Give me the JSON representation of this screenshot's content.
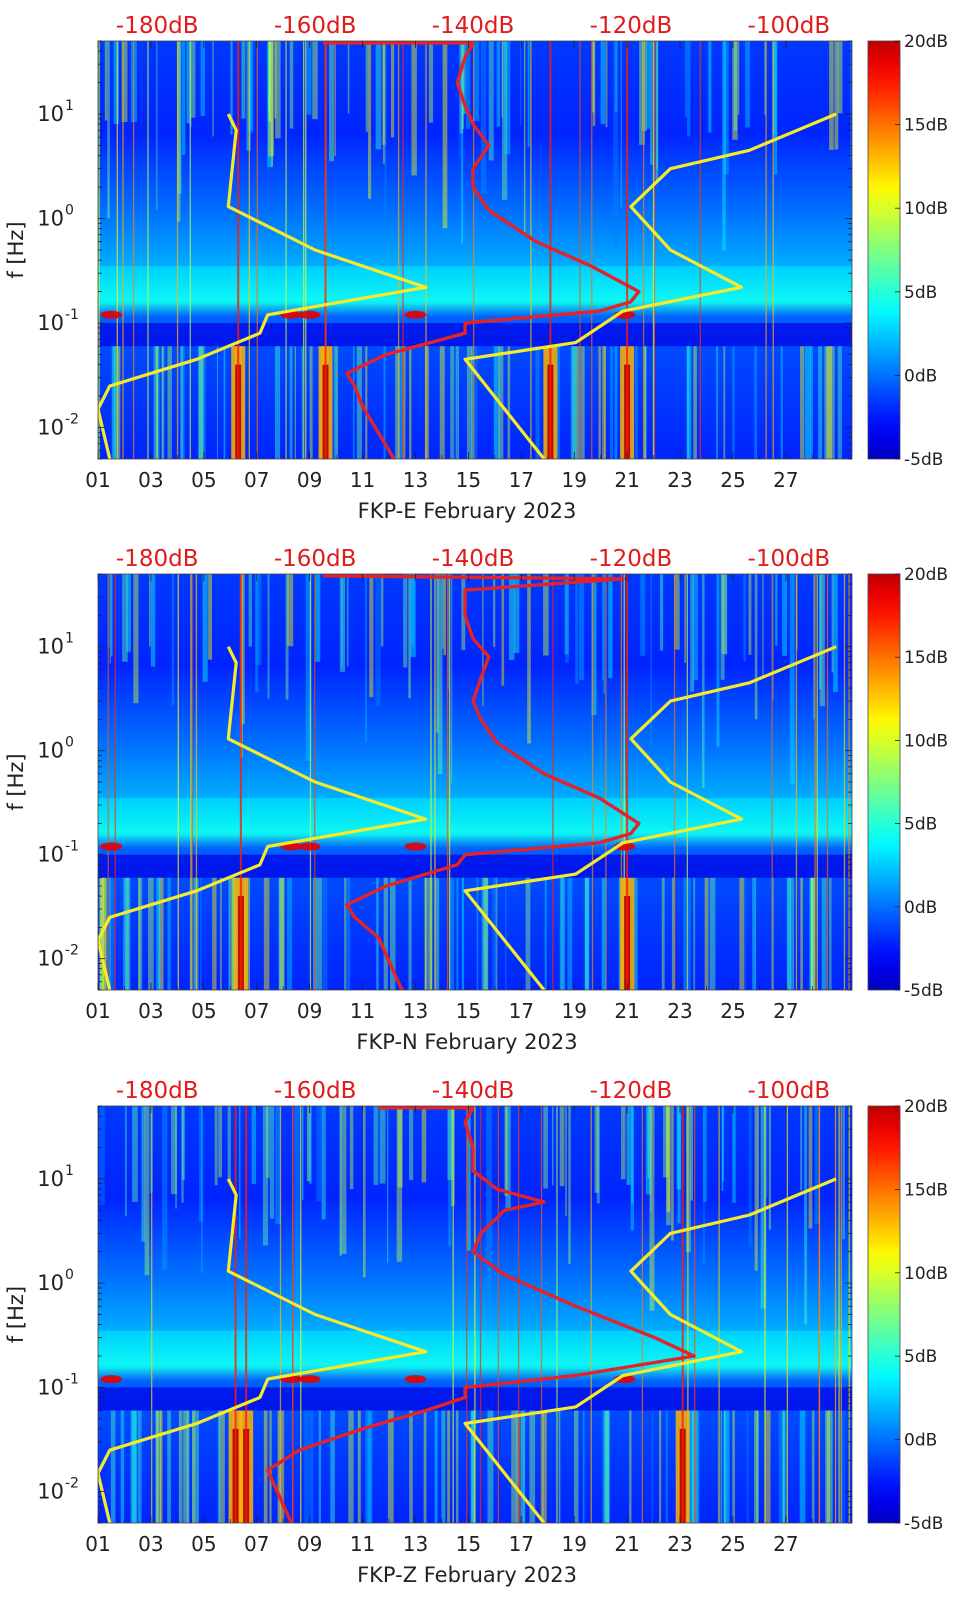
{
  "figure": {
    "colors": {
      "noise_model": "#f5ea2b",
      "median_curve": "#e3232a",
      "top_axis_text": "#e01b1b",
      "axis_text": "#222222"
    }
  },
  "chart_data": [
    {
      "type": "heatmap",
      "station": "FKP-E",
      "xlabel": "FKP-E February 2023",
      "ylabel": "f [Hz]",
      "x_ticks": [
        "01",
        "03",
        "05",
        "07",
        "09",
        "11",
        "13",
        "15",
        "17",
        "19",
        "21",
        "23",
        "25",
        "27"
      ],
      "x_range": [
        1,
        29.5
      ],
      "y_scale": "log",
      "y_range_hz": [
        0.005,
        50
      ],
      "y_ticks": [
        {
          "label": "10",
          "exp": "-2",
          "value": 0.01
        },
        {
          "label": "10",
          "exp": "-1",
          "value": 0.1
        },
        {
          "label": "10",
          "exp": "0",
          "value": 1
        },
        {
          "label": "10",
          "exp": "1",
          "value": 10
        }
      ],
      "top_axis_db_ticks": [
        "-180dB",
        "-160dB",
        "-140dB",
        "-120dB",
        "-100dB"
      ],
      "top_axis_db_values": [
        -180,
        -160,
        -140,
        -120,
        -100
      ],
      "top_axis_range_db": [
        -187.5,
        -92
      ],
      "colorbar": {
        "range_db": [
          -5,
          20
        ],
        "ticks": [
          "20dB",
          "15dB",
          "10dB",
          "5dB",
          "0dB",
          "-5dB"
        ],
        "tick_values": [
          20,
          15,
          10,
          5,
          0,
          -5
        ],
        "colormap": "jet"
      },
      "noise_model_db": [
        {
          "series": "low",
          "points": [
            [
              0.005,
              -186
            ],
            [
              0.015,
              -187.5
            ],
            [
              0.025,
              -186
            ],
            [
              0.045,
              -175
            ],
            [
              0.08,
              -167
            ],
            [
              0.12,
              -166
            ],
            [
              0.22,
              -146
            ],
            [
              0.5,
              -160
            ],
            [
              1.3,
              -171
            ],
            [
              7,
              -170
            ],
            [
              10,
              -171
            ]
          ]
        },
        {
          "series": "high",
          "points": [
            [
              0.005,
              -131
            ],
            [
              0.045,
              -141
            ],
            [
              0.065,
              -127
            ],
            [
              0.13,
              -121
            ],
            [
              0.22,
              -106
            ],
            [
              0.5,
              -115
            ],
            [
              1.3,
              -120
            ],
            [
              3,
              -115
            ],
            [
              4.5,
              -105
            ],
            [
              10,
              -94
            ]
          ]
        }
      ],
      "median_curve_db": [
        [
          0.005,
          -150
        ],
        [
          0.016,
          -154
        ],
        [
          0.025,
          -155
        ],
        [
          0.033,
          -156
        ],
        [
          0.05,
          -151
        ],
        [
          0.08,
          -141
        ],
        [
          0.1,
          -141
        ],
        [
          0.13,
          -124
        ],
        [
          0.16,
          -120
        ],
        [
          0.2,
          -119
        ],
        [
          0.35,
          -125
        ],
        [
          0.6,
          -132
        ],
        [
          1.2,
          -138
        ],
        [
          2,
          -140
        ],
        [
          3,
          -140
        ],
        [
          5,
          -138
        ],
        [
          8,
          -140
        ],
        [
          12,
          -141
        ],
        [
          20,
          -142
        ],
        [
          35,
          -141
        ],
        [
          48,
          -140
        ],
        [
          48,
          -159
        ]
      ],
      "bright_days": [
        6.3,
        9.6,
        18.1,
        21.0
      ]
    },
    {
      "type": "heatmap",
      "station": "FKP-N",
      "xlabel": "FKP-N February 2023",
      "ylabel": "f [Hz]",
      "x_ticks": [
        "01",
        "03",
        "05",
        "07",
        "09",
        "11",
        "13",
        "15",
        "17",
        "19",
        "21",
        "23",
        "25",
        "27"
      ],
      "x_range": [
        1,
        29.5
      ],
      "y_scale": "log",
      "y_range_hz": [
        0.005,
        50
      ],
      "y_ticks": [
        {
          "label": "10",
          "exp": "-2",
          "value": 0.01
        },
        {
          "label": "10",
          "exp": "-1",
          "value": 0.1
        },
        {
          "label": "10",
          "exp": "0",
          "value": 1
        },
        {
          "label": "10",
          "exp": "1",
          "value": 10
        }
      ],
      "top_axis_db_ticks": [
        "-180dB",
        "-160dB",
        "-140dB",
        "-120dB",
        "-100dB"
      ],
      "top_axis_db_values": [
        -180,
        -160,
        -140,
        -120,
        -100
      ],
      "top_axis_range_db": [
        -187.5,
        -92
      ],
      "colorbar": {
        "range_db": [
          -5,
          20
        ],
        "ticks": [
          "20dB",
          "15dB",
          "10dB",
          "5dB",
          "0dB",
          "-5dB"
        ],
        "tick_values": [
          20,
          15,
          10,
          5,
          0,
          -5
        ],
        "colormap": "jet"
      },
      "noise_model_db": [
        {
          "series": "low",
          "points": [
            [
              0.005,
              -186
            ],
            [
              0.015,
              -187.5
            ],
            [
              0.025,
              -186
            ],
            [
              0.045,
              -175
            ],
            [
              0.08,
              -167
            ],
            [
              0.12,
              -166
            ],
            [
              0.22,
              -146
            ],
            [
              0.5,
              -160
            ],
            [
              1.3,
              -171
            ],
            [
              7,
              -170
            ],
            [
              10,
              -171
            ]
          ]
        },
        {
          "series": "high",
          "points": [
            [
              0.005,
              -131
            ],
            [
              0.045,
              -141
            ],
            [
              0.065,
              -127
            ],
            [
              0.13,
              -121
            ],
            [
              0.22,
              -106
            ],
            [
              0.5,
              -115
            ],
            [
              1.3,
              -120
            ],
            [
              3,
              -115
            ],
            [
              4.5,
              -105
            ],
            [
              10,
              -94
            ]
          ]
        }
      ],
      "median_curve_db": [
        [
          0.005,
          -149
        ],
        [
          0.016,
          -152
        ],
        [
          0.025,
          -155
        ],
        [
          0.033,
          -156
        ],
        [
          0.05,
          -151
        ],
        [
          0.08,
          -142
        ],
        [
          0.1,
          -141
        ],
        [
          0.13,
          -124
        ],
        [
          0.16,
          -120
        ],
        [
          0.2,
          -119
        ],
        [
          0.35,
          -124
        ],
        [
          0.6,
          -131
        ],
        [
          1.2,
          -137
        ],
        [
          2,
          -139
        ],
        [
          3,
          -140
        ],
        [
          5,
          -139
        ],
        [
          8,
          -138
        ],
        [
          12,
          -140
        ],
        [
          20,
          -141
        ],
        [
          35,
          -141
        ],
        [
          45,
          -121
        ],
        [
          48,
          -159
        ]
      ],
      "bright_days": [
        6.4,
        21.0
      ]
    },
    {
      "type": "heatmap",
      "station": "FKP-Z",
      "xlabel": "FKP-Z February 2023",
      "ylabel": "f [Hz]",
      "x_ticks": [
        "01",
        "03",
        "05",
        "07",
        "09",
        "11",
        "13",
        "15",
        "17",
        "19",
        "21",
        "23",
        "25",
        "27"
      ],
      "x_range": [
        1,
        29.5
      ],
      "y_scale": "log",
      "y_range_hz": [
        0.005,
        50
      ],
      "y_ticks": [
        {
          "label": "10",
          "exp": "-2",
          "value": 0.01
        },
        {
          "label": "10",
          "exp": "-1",
          "value": 0.1
        },
        {
          "label": "10",
          "exp": "0",
          "value": 1
        },
        {
          "label": "10",
          "exp": "1",
          "value": 10
        }
      ],
      "top_axis_db_ticks": [
        "-180dB",
        "-160dB",
        "-140dB",
        "-120dB",
        "-100dB"
      ],
      "top_axis_db_values": [
        -180,
        -160,
        -140,
        -120,
        -100
      ],
      "top_axis_range_db": [
        -187.5,
        -92
      ],
      "colorbar": {
        "range_db": [
          -5,
          20
        ],
        "ticks": [
          "20dB",
          "15dB",
          "10dB",
          "5dB",
          "0dB",
          "-5dB"
        ],
        "tick_values": [
          20,
          15,
          10,
          5,
          0,
          -5
        ],
        "colormap": "jet"
      },
      "noise_model_db": [
        {
          "series": "low",
          "points": [
            [
              0.005,
              -186
            ],
            [
              0.015,
              -187.5
            ],
            [
              0.025,
              -186
            ],
            [
              0.045,
              -175
            ],
            [
              0.08,
              -167
            ],
            [
              0.12,
              -166
            ],
            [
              0.22,
              -146
            ],
            [
              0.5,
              -160
            ],
            [
              1.3,
              -171
            ],
            [
              7,
              -170
            ],
            [
              10,
              -171
            ]
          ]
        },
        {
          "series": "high",
          "points": [
            [
              0.005,
              -131
            ],
            [
              0.045,
              -141
            ],
            [
              0.065,
              -127
            ],
            [
              0.13,
              -121
            ],
            [
              0.22,
              -106
            ],
            [
              0.5,
              -115
            ],
            [
              1.3,
              -120
            ],
            [
              3,
              -115
            ],
            [
              4.5,
              -105
            ],
            [
              10,
              -94
            ]
          ]
        }
      ],
      "median_curve_db": [
        [
          0.005,
          -163
        ],
        [
          0.016,
          -166
        ],
        [
          0.025,
          -162
        ],
        [
          0.04,
          -154
        ],
        [
          0.06,
          -146
        ],
        [
          0.08,
          -141
        ],
        [
          0.1,
          -141
        ],
        [
          0.13,
          -127
        ],
        [
          0.2,
          -112
        ],
        [
          0.3,
          -117
        ],
        [
          0.6,
          -127
        ],
        [
          1.2,
          -136
        ],
        [
          2,
          -140
        ],
        [
          3,
          -139
        ],
        [
          5,
          -136
        ],
        [
          6,
          -131
        ],
        [
          8,
          -137
        ],
        [
          12,
          -140
        ],
        [
          20,
          -140
        ],
        [
          35,
          -141
        ],
        [
          48,
          -140
        ],
        [
          48,
          -152
        ]
      ],
      "bright_days": [
        6.2,
        6.6,
        23.1
      ]
    }
  ]
}
